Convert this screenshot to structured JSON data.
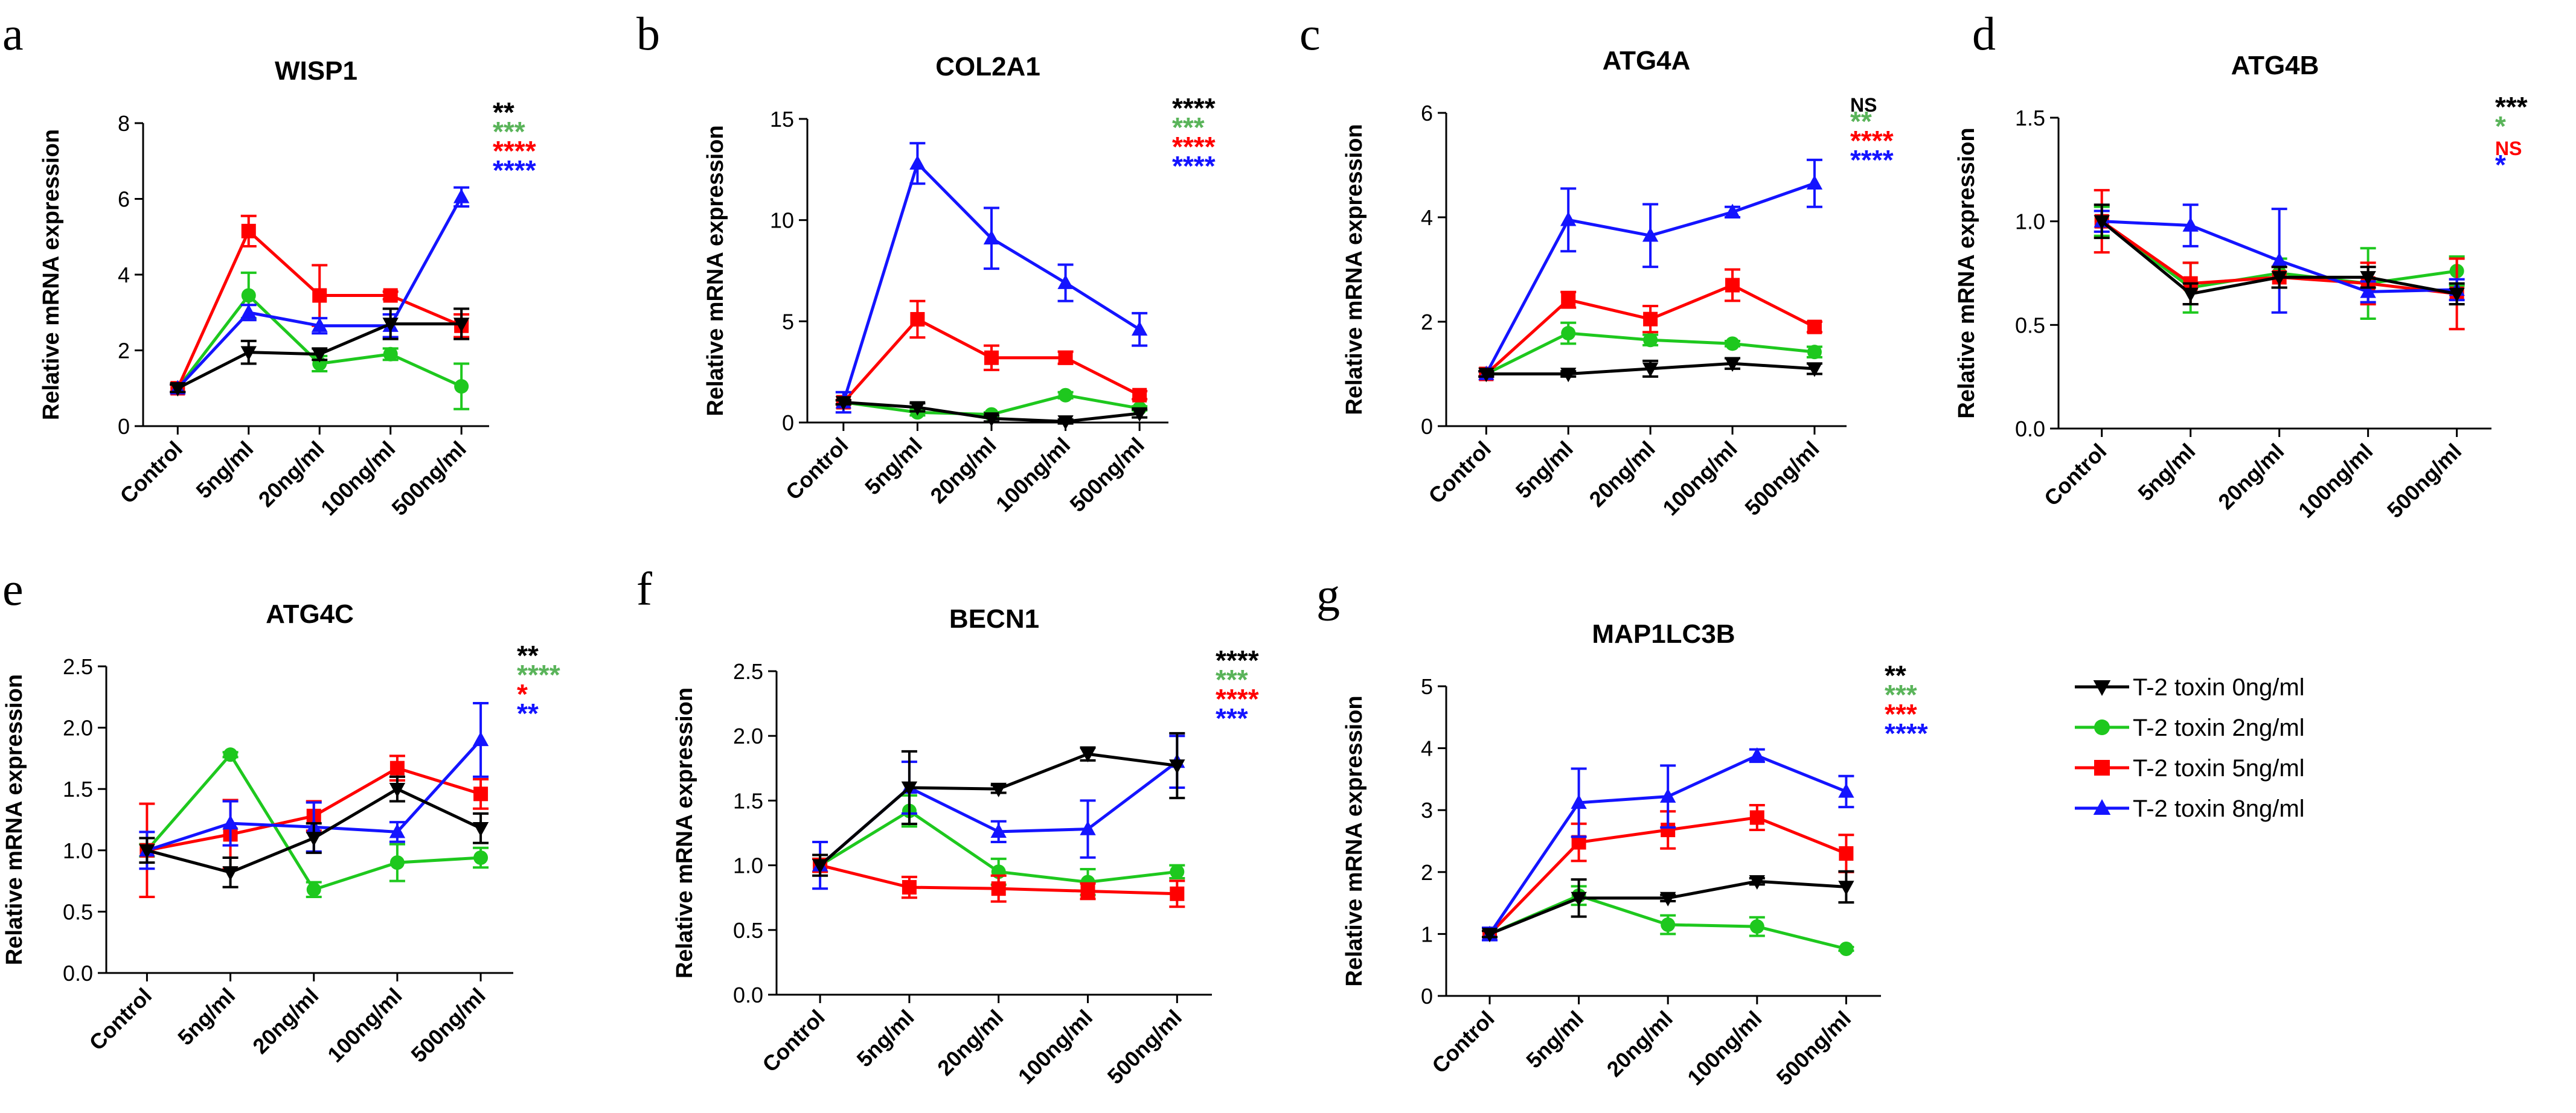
{
  "figure": {
    "background": "#ffffff"
  },
  "series_styles": [
    {
      "name": "T-2 toxin 0ng/ml",
      "color": "#000000",
      "marker": "triangle-down"
    },
    {
      "name": "T-2 toxin 2ng/ml",
      "color": "#1ec81e",
      "marker": "circle"
    },
    {
      "name": "T-2 toxin 5ng/ml",
      "color": "#ff0000",
      "marker": "square"
    },
    {
      "name": "T-2 toxin 8ng/ml",
      "color": "#1414ff",
      "marker": "triangle-up"
    }
  ],
  "legend": {
    "items": [
      "T-2 toxin 0ng/ml",
      "T-2 toxin 2ng/ml",
      "T-2 toxin 5ng/ml",
      "T-2 toxin 8ng/ml"
    ]
  },
  "chart_data": [
    {
      "panel": "a",
      "type": "line",
      "title": "WISP1",
      "ylabel": "Relative mRNA expression",
      "xlabel": "",
      "categories": [
        "Control",
        "5ng/ml",
        "20ng/ml",
        "100ng/ml",
        "500ng/ml"
      ],
      "ylim": [
        0,
        8
      ],
      "yticks": [
        0,
        2,
        4,
        6,
        8
      ],
      "tick_labels": [
        "0",
        "2",
        "4",
        "6",
        "8"
      ],
      "series": [
        {
          "name": "T-2 toxin 0ng/ml",
          "values": [
            1.0,
            1.95,
            1.9,
            2.7,
            2.7
          ],
          "errors": [
            0.1,
            0.3,
            0.15,
            0.4,
            0.4
          ]
        },
        {
          "name": "T-2 toxin 2ng/ml",
          "values": [
            1.0,
            3.45,
            1.65,
            1.9,
            1.05
          ],
          "errors": [
            0.1,
            0.6,
            0.2,
            0.15,
            0.6
          ]
        },
        {
          "name": "T-2 toxin 5ng/ml",
          "values": [
            1.0,
            5.15,
            3.45,
            3.45,
            2.65
          ],
          "errors": [
            0.1,
            0.4,
            0.8,
            0.1,
            0.3
          ]
        },
        {
          "name": "T-2 toxin 8ng/ml",
          "values": [
            1.0,
            3.0,
            2.65,
            2.65,
            6.05
          ],
          "errors": [
            0.1,
            0.2,
            0.2,
            0.3,
            0.25
          ]
        }
      ],
      "significance": [
        {
          "text": "**",
          "color": "#000000"
        },
        {
          "text": "***",
          "color": "#5ab45a"
        },
        {
          "text": "****",
          "color": "#ff0000"
        },
        {
          "text": "****",
          "color": "#1414ff"
        }
      ]
    },
    {
      "panel": "b",
      "type": "line",
      "title": "COL2A1",
      "ylabel": "Relative mRNA expression",
      "xlabel": "",
      "categories": [
        "Control",
        "5ng/ml",
        "20ng/ml",
        "100ng/ml",
        "500ng/ml"
      ],
      "ylim": [
        0,
        15
      ],
      "yticks": [
        0,
        5,
        10,
        15
      ],
      "tick_labels": [
        "0",
        "5",
        "10",
        "15"
      ],
      "series": [
        {
          "name": "T-2 toxin 0ng/ml",
          "values": [
            1.0,
            0.75,
            0.2,
            0.05,
            0.45
          ],
          "errors": [
            0.1,
            0.2,
            0.15,
            0.1,
            0.2
          ]
        },
        {
          "name": "T-2 toxin 2ng/ml",
          "values": [
            1.0,
            0.5,
            0.4,
            1.35,
            0.7
          ],
          "errors": [
            0.1,
            0.15,
            0.1,
            0.15,
            0.1
          ]
        },
        {
          "name": "T-2 toxin 5ng/ml",
          "values": [
            1.0,
            5.1,
            3.2,
            3.2,
            1.35
          ],
          "errors": [
            0.1,
            0.9,
            0.6,
            0.3,
            0.2
          ]
        },
        {
          "name": "T-2 toxin 8ng/ml",
          "values": [
            1.0,
            12.8,
            9.1,
            6.9,
            4.6
          ],
          "errors": [
            0.5,
            1.0,
            1.5,
            0.9,
            0.8
          ]
        }
      ],
      "significance": [
        {
          "text": "****",
          "color": "#000000"
        },
        {
          "text": "***",
          "color": "#5ab45a"
        },
        {
          "text": "****",
          "color": "#ff0000"
        },
        {
          "text": "****",
          "color": "#1414ff"
        }
      ]
    },
    {
      "panel": "c",
      "type": "line",
      "title": "ATG4A",
      "ylabel": "Relative mRNA expression",
      "xlabel": "",
      "categories": [
        "Control",
        "5ng/ml",
        "20ng/ml",
        "100ng/ml",
        "500ng/ml"
      ],
      "ylim": [
        0,
        6
      ],
      "yticks": [
        0,
        2,
        4,
        6
      ],
      "tick_labels": [
        "0",
        "2",
        "4",
        "6"
      ],
      "series": [
        {
          "name": "T-2 toxin 0ng/ml",
          "values": [
            1.0,
            1.0,
            1.1,
            1.2,
            1.1
          ],
          "errors": [
            0.05,
            0.05,
            0.15,
            0.1,
            0.1
          ]
        },
        {
          "name": "T-2 toxin 2ng/ml",
          "values": [
            1.0,
            1.78,
            1.65,
            1.58,
            1.42
          ],
          "errors": [
            0.05,
            0.2,
            0.1,
            0.05,
            0.1
          ]
        },
        {
          "name": "T-2 toxin 5ng/ml",
          "values": [
            1.0,
            2.42,
            2.05,
            2.7,
            1.9
          ],
          "errors": [
            0.05,
            0.15,
            0.25,
            0.3,
            0.1
          ]
        },
        {
          "name": "T-2 toxin 8ng/ml",
          "values": [
            1.0,
            3.95,
            3.65,
            4.1,
            4.65
          ],
          "errors": [
            0.05,
            0.6,
            0.6,
            0.1,
            0.45
          ]
        }
      ],
      "significance": [
        {
          "text": "NS",
          "color": "#000000"
        },
        {
          "text": "**",
          "color": "#5ab45a"
        },
        {
          "text": "****",
          "color": "#ff0000"
        },
        {
          "text": "****",
          "color": "#1414ff"
        }
      ]
    },
    {
      "panel": "d",
      "type": "line",
      "title": "ATG4B",
      "ylabel": "Relative mRNA expression",
      "xlabel": "",
      "categories": [
        "Control",
        "5ng/ml",
        "20ng/ml",
        "100ng/ml",
        "500ng/ml"
      ],
      "ylim": [
        0,
        1.5
      ],
      "yticks": [
        0,
        0.5,
        1.0,
        1.5
      ],
      "tick_labels": [
        "0.0",
        "0.5",
        "1.0",
        "1.5"
      ],
      "series": [
        {
          "name": "T-2 toxin 0ng/ml",
          "values": [
            1.0,
            0.65,
            0.73,
            0.73,
            0.65
          ],
          "errors": [
            0.08,
            0.05,
            0.05,
            0.05,
            0.05
          ]
        },
        {
          "name": "T-2 toxin 2ng/ml",
          "values": [
            1.0,
            0.68,
            0.75,
            0.7,
            0.76
          ],
          "errors": [
            0.07,
            0.12,
            0.07,
            0.17,
            0.07
          ]
        },
        {
          "name": "T-2 toxin 5ng/ml",
          "values": [
            1.0,
            0.7,
            0.73,
            0.7,
            0.65
          ],
          "errors": [
            0.15,
            0.1,
            0.05,
            0.1,
            0.17
          ]
        },
        {
          "name": "T-2 toxin 8ng/ml",
          "values": [
            1.0,
            0.98,
            0.81,
            0.66,
            0.67
          ],
          "errors": [
            0.05,
            0.1,
            0.25,
            0.05,
            0.05
          ]
        }
      ],
      "significance": [
        {
          "text": "***",
          "color": "#000000"
        },
        {
          "text": "*",
          "color": "#5ab45a"
        },
        {
          "text": "NS",
          "color": "#ff0000"
        },
        {
          "text": "*",
          "color": "#1414ff"
        }
      ]
    },
    {
      "panel": "e",
      "type": "line",
      "title": "ATG4C",
      "ylabel": "Relative mRNA expression",
      "xlabel": "",
      "categories": [
        "Control",
        "5ng/ml",
        "20ng/ml",
        "100ng/ml",
        "500ng/ml"
      ],
      "ylim": [
        0,
        2.5
      ],
      "yticks": [
        0,
        0.5,
        1.0,
        1.5,
        2.0,
        2.5
      ],
      "tick_labels": [
        "0.0",
        "0.5",
        "1.0",
        "1.5",
        "2.0",
        "2.5"
      ],
      "series": [
        {
          "name": "T-2 toxin 0ng/ml",
          "values": [
            1.0,
            0.82,
            1.1,
            1.5,
            1.18
          ],
          "errors": [
            0.1,
            0.12,
            0.12,
            0.1,
            0.12
          ]
        },
        {
          "name": "T-2 toxin 2ng/ml",
          "values": [
            1.0,
            1.78,
            0.68,
            0.9,
            0.94
          ],
          "errors": [
            0.05,
            0.02,
            0.06,
            0.15,
            0.08
          ]
        },
        {
          "name": "T-2 toxin 5ng/ml",
          "values": [
            1.0,
            1.13,
            1.28,
            1.67,
            1.46
          ],
          "errors": [
            0.38,
            0.28,
            0.12,
            0.1,
            0.12
          ]
        },
        {
          "name": "T-2 toxin 8ng/ml",
          "values": [
            1.0,
            1.22,
            1.19,
            1.15,
            1.9
          ],
          "errors": [
            0.15,
            0.18,
            0.2,
            0.08,
            0.3
          ]
        }
      ],
      "significance": [
        {
          "text": "**",
          "color": "#000000"
        },
        {
          "text": "****",
          "color": "#5ab45a"
        },
        {
          "text": "*",
          "color": "#ff0000"
        },
        {
          "text": "**",
          "color": "#1414ff"
        }
      ]
    },
    {
      "panel": "f",
      "type": "line",
      "title": "BECN1",
      "ylabel": "Relative mRNA expression",
      "xlabel": "",
      "categories": [
        "Control",
        "5ng/ml",
        "20ng/ml",
        "100ng/ml",
        "500ng/ml"
      ],
      "ylim": [
        0,
        2.5
      ],
      "yticks": [
        0,
        0.5,
        1.0,
        1.5,
        2.0,
        2.5
      ],
      "tick_labels": [
        "0.0",
        "0.5",
        "1.0",
        "1.5",
        "2.0",
        "2.5"
      ],
      "series": [
        {
          "name": "T-2 toxin 0ng/ml",
          "values": [
            1.0,
            1.6,
            1.59,
            1.86,
            1.77
          ],
          "errors": [
            0.08,
            0.28,
            0.03,
            0.05,
            0.25
          ]
        },
        {
          "name": "T-2 toxin 2ng/ml",
          "values": [
            1.0,
            1.42,
            0.95,
            0.87,
            0.95
          ],
          "errors": [
            0.05,
            0.12,
            0.1,
            0.1,
            0.05
          ]
        },
        {
          "name": "T-2 toxin 5ng/ml",
          "values": [
            1.0,
            0.83,
            0.82,
            0.8,
            0.78
          ],
          "errors": [
            0.05,
            0.08,
            0.1,
            0.06,
            0.1
          ]
        },
        {
          "name": "T-2 toxin 8ng/ml",
          "values": [
            1.0,
            1.6,
            1.26,
            1.28,
            1.8
          ],
          "errors": [
            0.18,
            0.2,
            0.08,
            0.22,
            0.2
          ]
        }
      ],
      "significance": [
        {
          "text": "****",
          "color": "#000000"
        },
        {
          "text": "***",
          "color": "#5ab45a"
        },
        {
          "text": "****",
          "color": "#ff0000"
        },
        {
          "text": "***",
          "color": "#1414ff"
        }
      ]
    },
    {
      "panel": "g",
      "type": "line",
      "title": "MAP1LC3B",
      "ylabel": "Relative mRNA expression",
      "xlabel": "",
      "categories": [
        "Control",
        "5ng/ml",
        "20ng/ml",
        "100ng/ml",
        "500ng/ml"
      ],
      "ylim": [
        0,
        5
      ],
      "yticks": [
        0,
        1,
        2,
        3,
        4,
        5
      ],
      "tick_labels": [
        "0",
        "1",
        "2",
        "3",
        "4",
        "5"
      ],
      "series": [
        {
          "name": "T-2 toxin 0ng/ml",
          "values": [
            1.0,
            1.58,
            1.58,
            1.85,
            1.76
          ],
          "errors": [
            0.05,
            0.3,
            0.05,
            0.05,
            0.25
          ]
        },
        {
          "name": "T-2 toxin 2ng/ml",
          "values": [
            1.0,
            1.62,
            1.15,
            1.12,
            0.76
          ],
          "errors": [
            0.05,
            0.15,
            0.15,
            0.15,
            0.03
          ]
        },
        {
          "name": "T-2 toxin 5ng/ml",
          "values": [
            1.0,
            2.48,
            2.68,
            2.88,
            2.3
          ],
          "errors": [
            0.05,
            0.3,
            0.3,
            0.2,
            0.3
          ]
        },
        {
          "name": "T-2 toxin 8ng/ml",
          "values": [
            1.0,
            3.12,
            3.22,
            3.88,
            3.3
          ],
          "errors": [
            0.1,
            0.55,
            0.5,
            0.1,
            0.25
          ]
        }
      ],
      "significance": [
        {
          "text": "**",
          "color": "#000000"
        },
        {
          "text": "***",
          "color": "#5ab45a"
        },
        {
          "text": "***",
          "color": "#ff0000"
        },
        {
          "text": "****",
          "color": "#1414ff"
        }
      ]
    }
  ]
}
